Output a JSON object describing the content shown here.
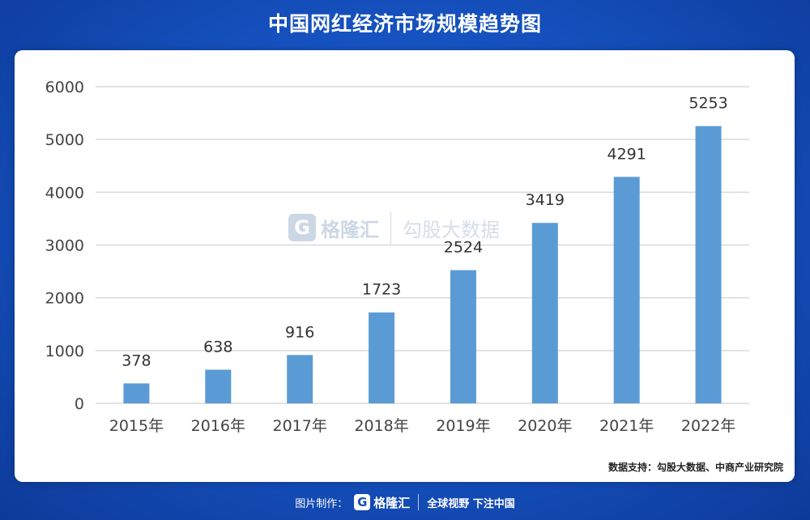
{
  "header": {
    "title": "中国网红经济市场规模趋势图"
  },
  "watermark": {
    "logo_letter": "G",
    "name": "格隆汇",
    "brand": "勾股大数据"
  },
  "source": "数据支持：勾股大数据、中商产业研究院",
  "footer": {
    "prefix": "图片制作：",
    "logo_letter": "G",
    "name": "格隆汇",
    "slogan": "全球视野 下注中国"
  },
  "colors": {
    "bar": "#5b9bd5",
    "background": "#1550bd",
    "grid": "#d9d9d9"
  },
  "chart_data": {
    "type": "bar",
    "title": "",
    "xlabel": "",
    "ylabel": "",
    "categories": [
      "2015年",
      "2016年",
      "2017年",
      "2018年",
      "2019年",
      "2020年",
      "2021年",
      "2022年"
    ],
    "values": [
      378,
      638,
      916,
      1723,
      2524,
      3419,
      4291,
      5253
    ],
    "data_labels": [
      "378",
      "638",
      "916",
      "1723",
      "2524",
      "3419",
      "4291",
      "5253"
    ],
    "yticks": [
      "0",
      "1000",
      "2000",
      "3000",
      "4000",
      "5000",
      "6000"
    ],
    "ylim": [
      0,
      6000
    ],
    "grid": true,
    "legend": "none"
  }
}
